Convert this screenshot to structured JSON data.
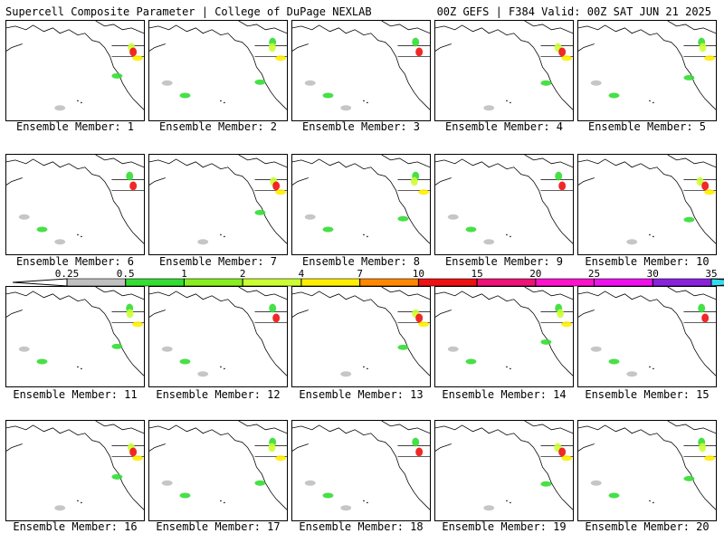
{
  "header": {
    "left_title": "Supercell Composite Parameter | College of DuPage NEXLAB",
    "right_title": "00Z GEFS | F384 Valid: 00Z SAT JUN 21 2025"
  },
  "members": [
    {
      "label": "Ensemble Member: 1"
    },
    {
      "label": "Ensemble Member: 2"
    },
    {
      "label": "Ensemble Member: 3"
    },
    {
      "label": "Ensemble Member: 4"
    },
    {
      "label": "Ensemble Member: 5"
    },
    {
      "label": "Ensemble Member: 6"
    },
    {
      "label": "Ensemble Member: 7"
    },
    {
      "label": "Ensemble Member: 8"
    },
    {
      "label": "Ensemble Member: 9"
    },
    {
      "label": "Ensemble Member: 10"
    },
    {
      "label": "Ensemble Member: 11"
    },
    {
      "label": "Ensemble Member: 12"
    },
    {
      "label": "Ensemble Member: 13"
    },
    {
      "label": "Ensemble Member: 14"
    },
    {
      "label": "Ensemble Member: 15"
    },
    {
      "label": "Ensemble Member: 16"
    },
    {
      "label": "Ensemble Member: 17"
    },
    {
      "label": "Ensemble Member: 18"
    },
    {
      "label": "Ensemble Member: 19"
    },
    {
      "label": "Ensemble Member: 20"
    }
  ],
  "colorbar": {
    "ticks": [
      "0.25",
      "0.5",
      "1",
      "2",
      "4",
      "7",
      "10",
      "15",
      "20",
      "25",
      "30",
      "35"
    ],
    "colors": [
      "#c0c0c0",
      "#33dd33",
      "#88ee22",
      "#ccff33",
      "#ffee00",
      "#ff8800",
      "#ee1111",
      "#ee1177",
      "#ff11cc",
      "#ee11ee",
      "#8822dd",
      "#9966dd",
      "#33ddee"
    ]
  }
}
